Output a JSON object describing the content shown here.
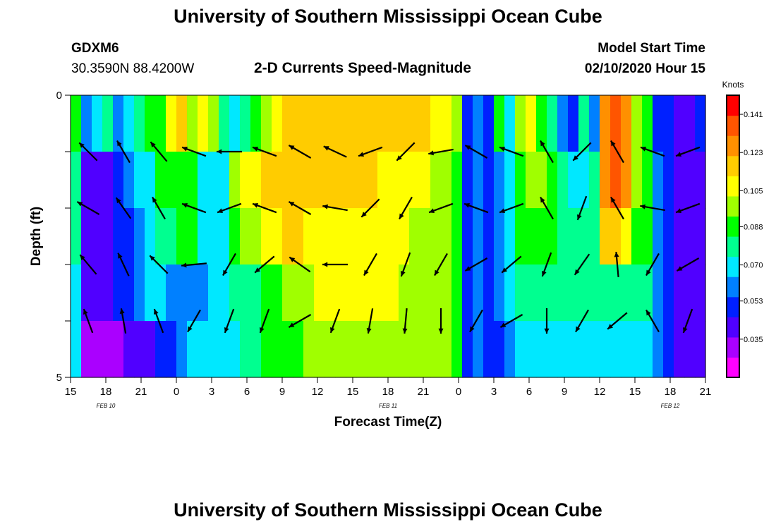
{
  "header": {
    "title": "University of Southern Mississippi Ocean Cube",
    "station_id": "GDXM6",
    "coordinates": "30.3590N 88.4200W",
    "subtitle": "2-D Currents Speed-Magnitude",
    "model_start_label": "Model Start Time",
    "model_start_value": "02/10/2020 Hour 15"
  },
  "footer": {
    "title": "University of Southern Mississippi Ocean Cube"
  },
  "chart_data": {
    "type": "heatmap",
    "title": "2-D Currents Speed-Magnitude",
    "xlabel": "Forecast Time(Z)",
    "ylabel": "Depth (ft)",
    "ylim": [
      0,
      5
    ],
    "y_ticks": [
      "0",
      "5"
    ],
    "x_tick_labels": [
      "15",
      "18",
      "21",
      "0",
      "3",
      "6",
      "9",
      "12",
      "15",
      "18",
      "21",
      "0",
      "3",
      "6",
      "9",
      "12",
      "15",
      "18",
      "21"
    ],
    "date_labels": [
      {
        "text": "FEB 10",
        "hour_index": 3
      },
      {
        "text": "FEB 11",
        "hour_index": 27
      },
      {
        "text": "FEB 12",
        "hour_index": 51
      }
    ],
    "x_hours_start": 0,
    "x_hours_end": 54,
    "colorbar": {
      "unit": "Knots",
      "min": 0.017,
      "max": 0.15,
      "ticks": [
        0.035,
        0.053,
        0.07,
        0.088,
        0.105,
        0.123,
        0.141
      ],
      "tick_labels": [
        "0.035",
        "0.053",
        "0.070",
        "0.088",
        "0.105",
        "0.123",
        "0.141"
      ],
      "colors": [
        "#ff00ff",
        "#aa00ff",
        "#5000ff",
        "#0020ff",
        "#0080ff",
        "#00e8ff",
        "#00ff90",
        "#00ff00",
        "#a0ff00",
        "#ffff00",
        "#ffcc00",
        "#ff9000",
        "#ff5500",
        "#ff0000"
      ]
    },
    "depth_layers": [
      0.5,
      1.5,
      2.5,
      3.5,
      4.5
    ],
    "speed_knots": [
      [
        0.09,
        0.06,
        0.07,
        0.08,
        0.06,
        0.07,
        0.08,
        0.09,
        0.09,
        0.11,
        0.12,
        0.1,
        0.11,
        0.1,
        0.08,
        0.07,
        0.08,
        0.09,
        0.1,
        0.11,
        0.12,
        0.12,
        0.12,
        0.12,
        0.12,
        0.12,
        0.12,
        0.12,
        0.12,
        0.12,
        0.12,
        0.12,
        0.12,
        0.12,
        0.11,
        0.11,
        0.1,
        0.05,
        0.06,
        0.05,
        0.09,
        0.07,
        0.1,
        0.11,
        0.09,
        0.08,
        0.06,
        0.05,
        0.08,
        0.06,
        0.13,
        0.14,
        0.13,
        0.1,
        0.09,
        0.05,
        0.05,
        0.04,
        0.04,
        0.05
      ],
      [
        0.08,
        0.04,
        0.04,
        0.04,
        0.05,
        0.06,
        0.07,
        0.07,
        0.09,
        0.09,
        0.09,
        0.09,
        0.07,
        0.07,
        0.07,
        0.1,
        0.11,
        0.11,
        0.12,
        0.12,
        0.12,
        0.12,
        0.12,
        0.12,
        0.12,
        0.12,
        0.12,
        0.12,
        0.12,
        0.11,
        0.11,
        0.11,
        0.11,
        0.11,
        0.1,
        0.1,
        0.09,
        0.05,
        0.06,
        0.05,
        0.06,
        0.07,
        0.09,
        0.1,
        0.1,
        0.09,
        0.08,
        0.07,
        0.07,
        0.08,
        0.13,
        0.14,
        0.13,
        0.1,
        0.09,
        0.06,
        0.05,
        0.04,
        0.04,
        0.04
      ],
      [
        0.08,
        0.04,
        0.04,
        0.04,
        0.05,
        0.05,
        0.06,
        0.07,
        0.08,
        0.08,
        0.09,
        0.09,
        0.07,
        0.07,
        0.07,
        0.09,
        0.1,
        0.1,
        0.11,
        0.11,
        0.12,
        0.12,
        0.11,
        0.11,
        0.11,
        0.11,
        0.11,
        0.11,
        0.11,
        0.11,
        0.11,
        0.11,
        0.1,
        0.1,
        0.1,
        0.1,
        0.09,
        0.05,
        0.06,
        0.05,
        0.06,
        0.07,
        0.09,
        0.09,
        0.09,
        0.09,
        0.08,
        0.08,
        0.08,
        0.08,
        0.12,
        0.12,
        0.11,
        0.09,
        0.09,
        0.06,
        0.05,
        0.04,
        0.04,
        0.04
      ],
      [
        0.07,
        0.04,
        0.04,
        0.04,
        0.05,
        0.05,
        0.06,
        0.07,
        0.07,
        0.06,
        0.06,
        0.06,
        0.06,
        0.07,
        0.07,
        0.08,
        0.08,
        0.08,
        0.09,
        0.09,
        0.1,
        0.1,
        0.1,
        0.11,
        0.11,
        0.11,
        0.11,
        0.11,
        0.11,
        0.11,
        0.11,
        0.1,
        0.1,
        0.1,
        0.1,
        0.1,
        0.09,
        0.05,
        0.06,
        0.05,
        0.06,
        0.07,
        0.08,
        0.08,
        0.08,
        0.08,
        0.08,
        0.08,
        0.08,
        0.08,
        0.08,
        0.08,
        0.08,
        0.08,
        0.08,
        0.06,
        0.05,
        0.04,
        0.04,
        0.04
      ],
      [
        0.07,
        0.03,
        0.03,
        0.03,
        0.03,
        0.04,
        0.04,
        0.04,
        0.05,
        0.05,
        0.06,
        0.07,
        0.07,
        0.07,
        0.07,
        0.07,
        0.08,
        0.08,
        0.09,
        0.09,
        0.09,
        0.09,
        0.1,
        0.1,
        0.1,
        0.1,
        0.1,
        0.1,
        0.1,
        0.1,
        0.1,
        0.1,
        0.1,
        0.1,
        0.1,
        0.1,
        0.09,
        0.05,
        0.06,
        0.05,
        0.05,
        0.06,
        0.07,
        0.07,
        0.07,
        0.07,
        0.07,
        0.07,
        0.07,
        0.07,
        0.07,
        0.07,
        0.07,
        0.07,
        0.07,
        0.06,
        0.05,
        0.04,
        0.04,
        0.04
      ]
    ],
    "vector_times_hours": [
      1.5,
      4.5,
      7.5,
      10.5,
      13.5,
      16.5,
      19.5,
      22.5,
      25.5,
      28.5,
      31.5,
      34.5,
      37.5,
      40.5,
      43.5,
      46.5,
      49.5,
      52.5
    ],
    "vector_depths": [
      1,
      2,
      3,
      4
    ],
    "vector_directions_deg": [
      [
        135,
        120,
        130,
        160,
        180,
        160,
        150,
        155,
        200,
        225,
        190,
        150,
        160,
        120,
        225,
        120,
        160,
        200
      ],
      [
        150,
        125,
        120,
        160,
        200,
        160,
        150,
        170,
        225,
        240,
        200,
        160,
        200,
        120,
        250,
        120,
        170,
        200
      ],
      [
        130,
        115,
        135,
        185,
        240,
        220,
        145,
        180,
        240,
        250,
        240,
        210,
        220,
        250,
        235,
        95,
        240,
        210
      ],
      [
        110,
        100,
        110,
        240,
        250,
        250,
        210,
        250,
        260,
        265,
        270,
        240,
        210,
        270,
        240,
        220,
        120,
        250
      ]
    ]
  }
}
